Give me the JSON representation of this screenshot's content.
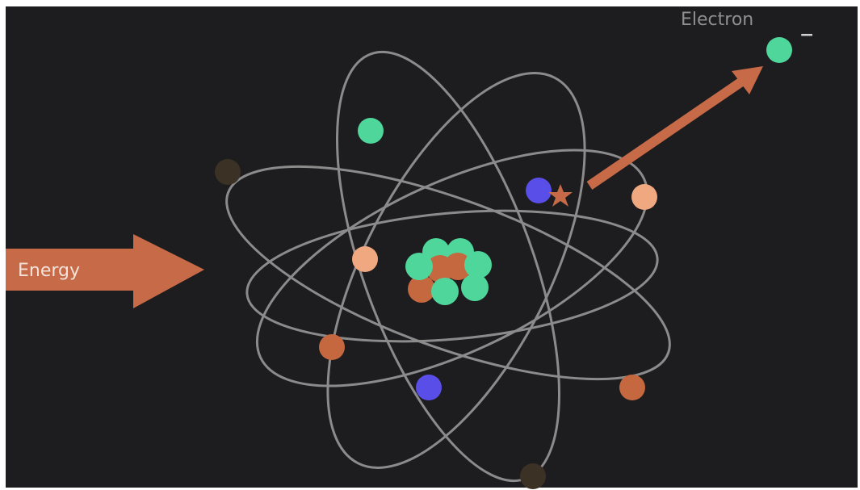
{
  "labels": {
    "energy": "Energy",
    "electron": "Electron",
    "charge": "−"
  }
}
